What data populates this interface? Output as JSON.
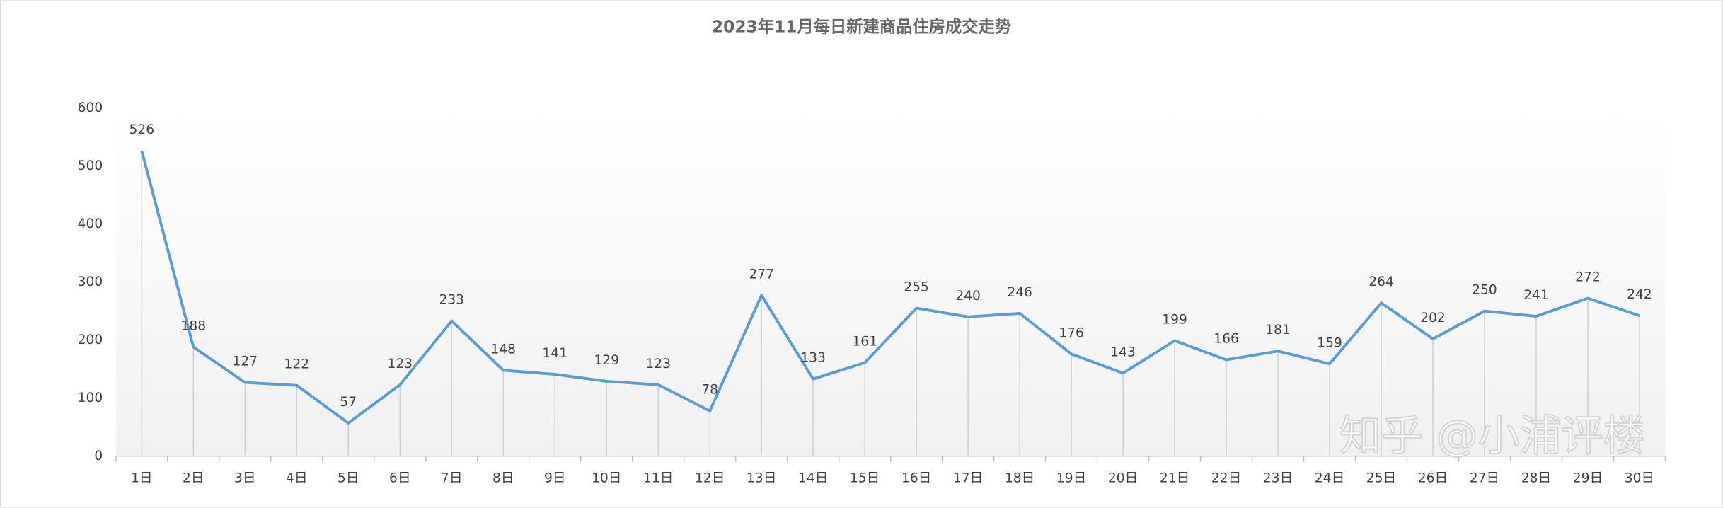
{
  "chart_data": {
    "type": "line",
    "title": "2023年11月每日新建商品住房成交走势",
    "categories": [
      "1日",
      "2日",
      "3日",
      "4日",
      "5日",
      "6日",
      "7日",
      "8日",
      "9日",
      "10日",
      "11日",
      "12日",
      "13日",
      "14日",
      "15日",
      "16日",
      "17日",
      "18日",
      "19日",
      "20日",
      "21日",
      "22日",
      "23日",
      "24日",
      "25日",
      "26日",
      "27日",
      "28日",
      "29日",
      "30日"
    ],
    "values": [
      526,
      188,
      127,
      122,
      57,
      123,
      233,
      148,
      141,
      129,
      123,
      78,
      277,
      133,
      161,
      255,
      240,
      246,
      176,
      143,
      199,
      166,
      181,
      159,
      264,
      202,
      250,
      241,
      272,
      242
    ],
    "color": "#5b9bd5",
    "ylim": [
      0,
      600
    ],
    "yticks": [
      0,
      100,
      200,
      300,
      400,
      500,
      600
    ],
    "grid": false,
    "watermark": "知乎 @小浦评楼"
  }
}
